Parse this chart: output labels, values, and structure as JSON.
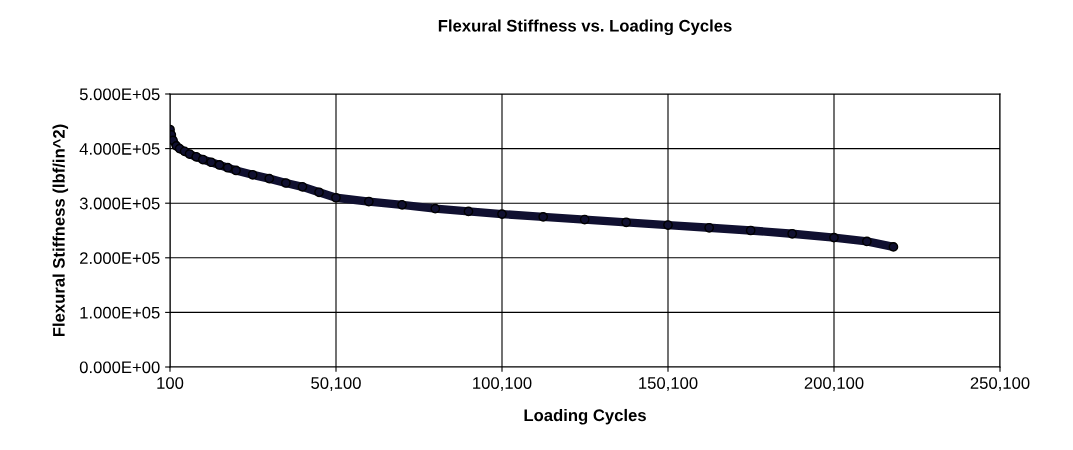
{
  "chart_data": {
    "type": "line",
    "title": "Flexural Stiffness vs. Loading Cycles",
    "xlabel": "Loading Cycles",
    "ylabel": "Flexural Stiffness (lbf/in^2)",
    "x": [
      100,
      500,
      1000,
      2000,
      3000,
      4500,
      6000,
      8000,
      10000,
      12500,
      15000,
      17500,
      20000,
      25000,
      30000,
      35000,
      40000,
      45000,
      50100,
      60000,
      70000,
      80000,
      90000,
      100100,
      112500,
      125000,
      137500,
      150100,
      162500,
      175000,
      187500,
      200100,
      210000,
      218000
    ],
    "series": [
      {
        "color": "#101030",
        "values": [
          435000,
          425000,
          415000,
          405000,
          400000,
          395000,
          390000,
          385000,
          380000,
          375000,
          370000,
          365000,
          360000,
          352000,
          345000,
          337000,
          330000,
          320000,
          310000,
          303000,
          297000,
          290000,
          285000,
          280000,
          275000,
          270000,
          265000,
          260000,
          255000,
          250000,
          244000,
          237000,
          230000,
          220000
        ]
      }
    ],
    "marker": "circle",
    "grid": true,
    "legend": false,
    "xlim": [
      100,
      250100
    ],
    "xticks": [
      {
        "value": 100,
        "label": "100"
      },
      {
        "value": 50100,
        "label": "50,100"
      },
      {
        "value": 100100,
        "label": "100,100"
      },
      {
        "value": 150100,
        "label": "150,100"
      },
      {
        "value": 200100,
        "label": "200,100"
      },
      {
        "value": 250100,
        "label": "250,100"
      }
    ],
    "ylim": [
      0,
      500000
    ],
    "yticks": [
      {
        "value": 0,
        "label": "0.000E+00"
      },
      {
        "value": 100000,
        "label": "1.000E+05"
      },
      {
        "value": 200000,
        "label": "2.000E+05"
      },
      {
        "value": 300000,
        "label": "3.000E+05"
      },
      {
        "value": 400000,
        "label": "4.000E+05"
      },
      {
        "value": 500000,
        "label": "5.000E+05"
      }
    ]
  }
}
